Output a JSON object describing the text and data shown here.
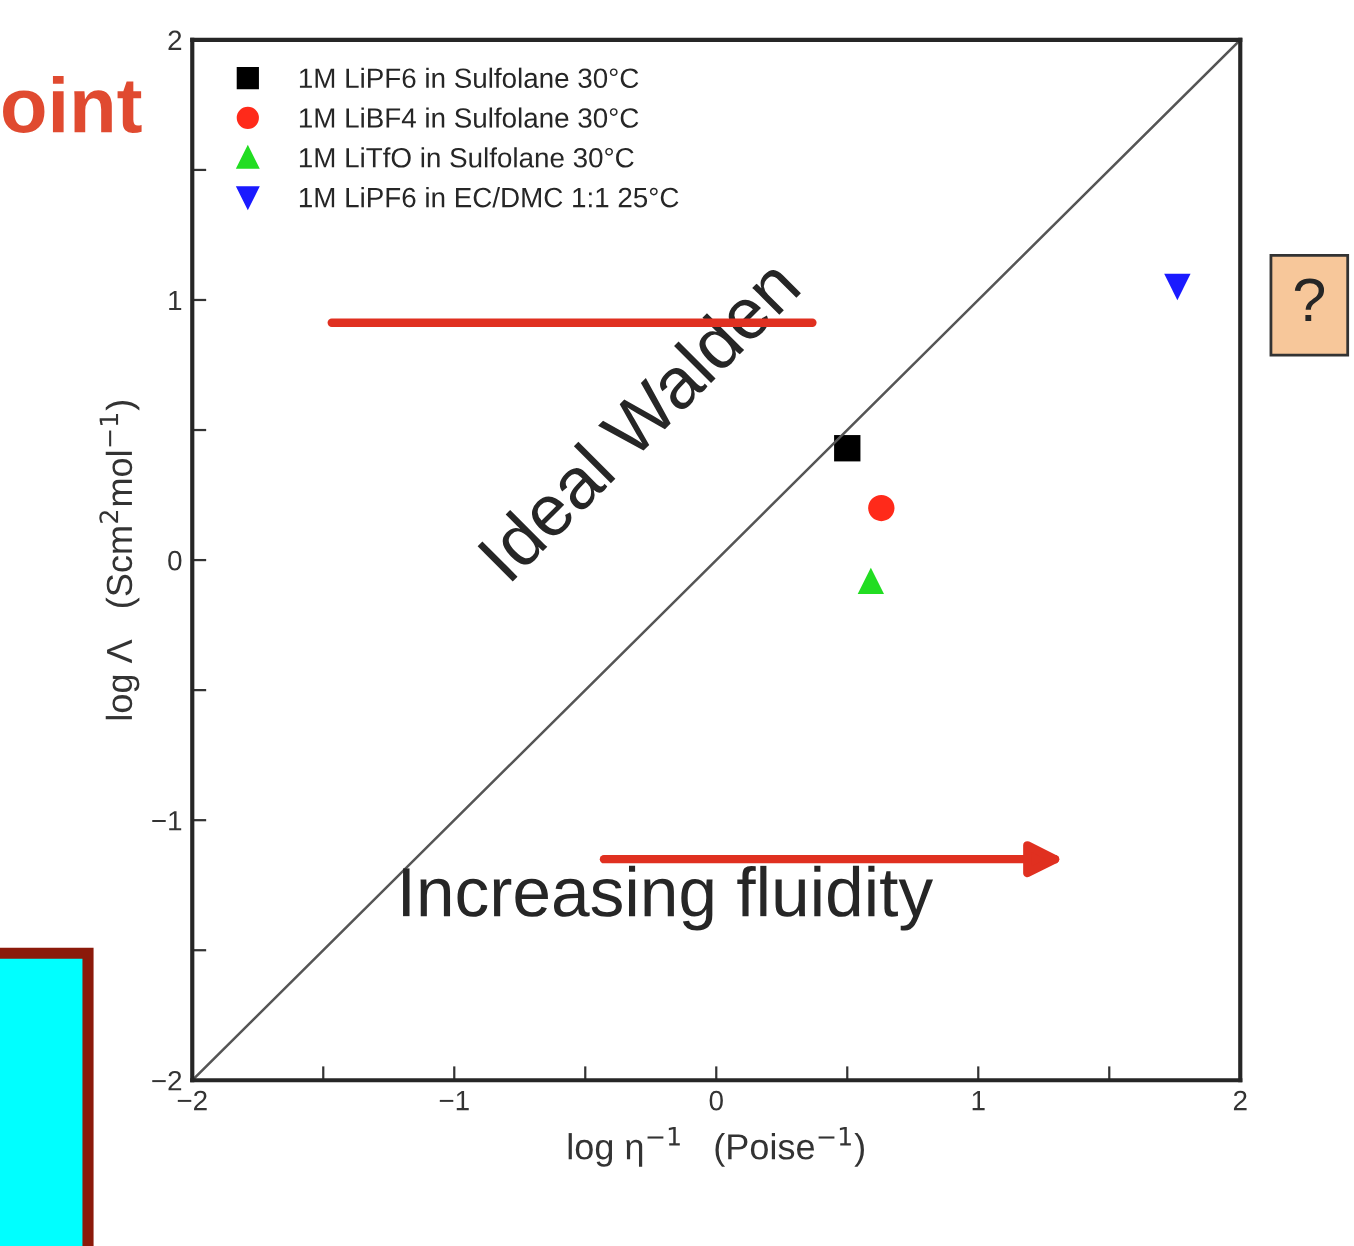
{
  "chart_data": {
    "type": "scatter",
    "xlabel": "log η$^{−1}$   (Poise$^{−1}$)",
    "ylabel": "log Λ   (Scm$^{2}$mol$^{−1}$)",
    "xlim": [
      -2,
      2
    ],
    "ylim": [
      -2,
      2
    ],
    "xticks": [
      {
        "value": -2,
        "label": "−2"
      },
      {
        "value": -1.5,
        "label": null
      },
      {
        "value": -1,
        "label": "−1"
      },
      {
        "value": -0.5,
        "label": null
      },
      0,
      {
        "value": 0.5,
        "label": null
      },
      1,
      {
        "value": 1.5,
        "label": null
      },
      2
    ],
    "yticks": [
      {
        "value": -2,
        "label": "−2"
      },
      {
        "value": -1.5,
        "label": null
      },
      {
        "value": -1,
        "label": "−1"
      },
      {
        "value": -0.5,
        "label": null
      },
      0,
      {
        "value": 0.5,
        "label": null
      },
      1,
      {
        "value": 1.5,
        "label": null
      },
      2
    ],
    "legend": "top left",
    "grid": false,
    "series": [
      {
        "name": "1M LiPF6 in Sulfolane 30°C",
        "color": "#000000",
        "marker": "square",
        "x": [
          0.5
        ],
        "values": [
          0.43
        ]
      },
      {
        "name": "1M LiBF4 in Sulfolane 30°C",
        "color": "#ff2a1a",
        "marker": "circle",
        "x": [
          0.63
        ],
        "values": [
          0.2
        ]
      },
      {
        "name": "1M LiTfO in Sulfolane 30°C",
        "color": "#22dd22",
        "marker": "triangle",
        "x": [
          0.59
        ],
        "values": [
          -0.08
        ]
      },
      {
        "name": "1M LiPF6 in EC/DMC 1:1 25°C",
        "color": "#1a1aff",
        "marker": "triangle_down",
        "x": [
          1.76
        ],
        "values": [
          1.05
        ]
      },
      {
        "type": "line",
        "color": "#555555",
        "x": [
          -2,
          2
        ],
        "values": [
          -2,
          2
        ]
      }
    ],
    "annotations": [
      "Ideal Walden",
      "Increasing fluidity",
      "?",
      "oint"
    ]
  }
}
